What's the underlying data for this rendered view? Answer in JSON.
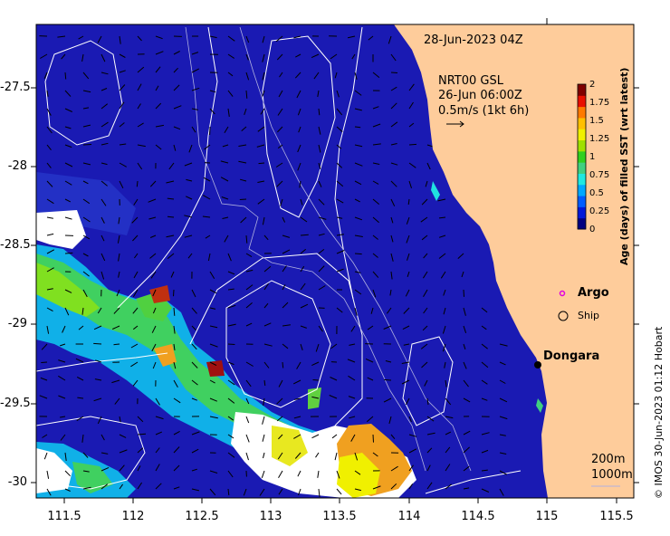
{
  "map": {
    "timestamp": "28-Jun-2023 04Z",
    "current_source": "NRT00 GSL",
    "current_time": "26-Jun 06:00Z",
    "current_scale": "0.5m/s (1kt 6h)",
    "place_name": "Dongara",
    "isobath_labels": [
      "200m",
      "1000m"
    ],
    "credit": "© IMOS 30-Jun-2023 01:12 Hobart",
    "colors": {
      "ocean": "#1a1ab3",
      "land": "#fecc9b",
      "contour": "#ffffff",
      "isobath": "#b0b0e0"
    }
  },
  "axes": {
    "x_ticks": [
      "111.5",
      "112",
      "112.5",
      "113",
      "113.5",
      "114",
      "114.5",
      "115",
      "115.5"
    ],
    "y_ticks": [
      "-27.5",
      "-28",
      "-28.5",
      "-29",
      "-29.5",
      "-30"
    ]
  },
  "colorbar": {
    "title": "Age (days) of filled SST (wrt latest)",
    "ticks": [
      "2",
      "1.75",
      "1.5",
      "1.25",
      "1",
      "0.75",
      "0.5",
      "0.25",
      "0"
    ],
    "colors": [
      "#000080",
      "#0018d8",
      "#005cff",
      "#00a8ff",
      "#20e8e0",
      "#40d080",
      "#30d020",
      "#a0e000",
      "#f0f000",
      "#ffc000",
      "#ff7a00",
      "#e81000",
      "#800000"
    ]
  },
  "legend": {
    "items": [
      {
        "label": "Argo",
        "icon": "argo-circle-icon"
      },
      {
        "label": "Ship",
        "icon": "ship-circle-icon"
      }
    ]
  }
}
